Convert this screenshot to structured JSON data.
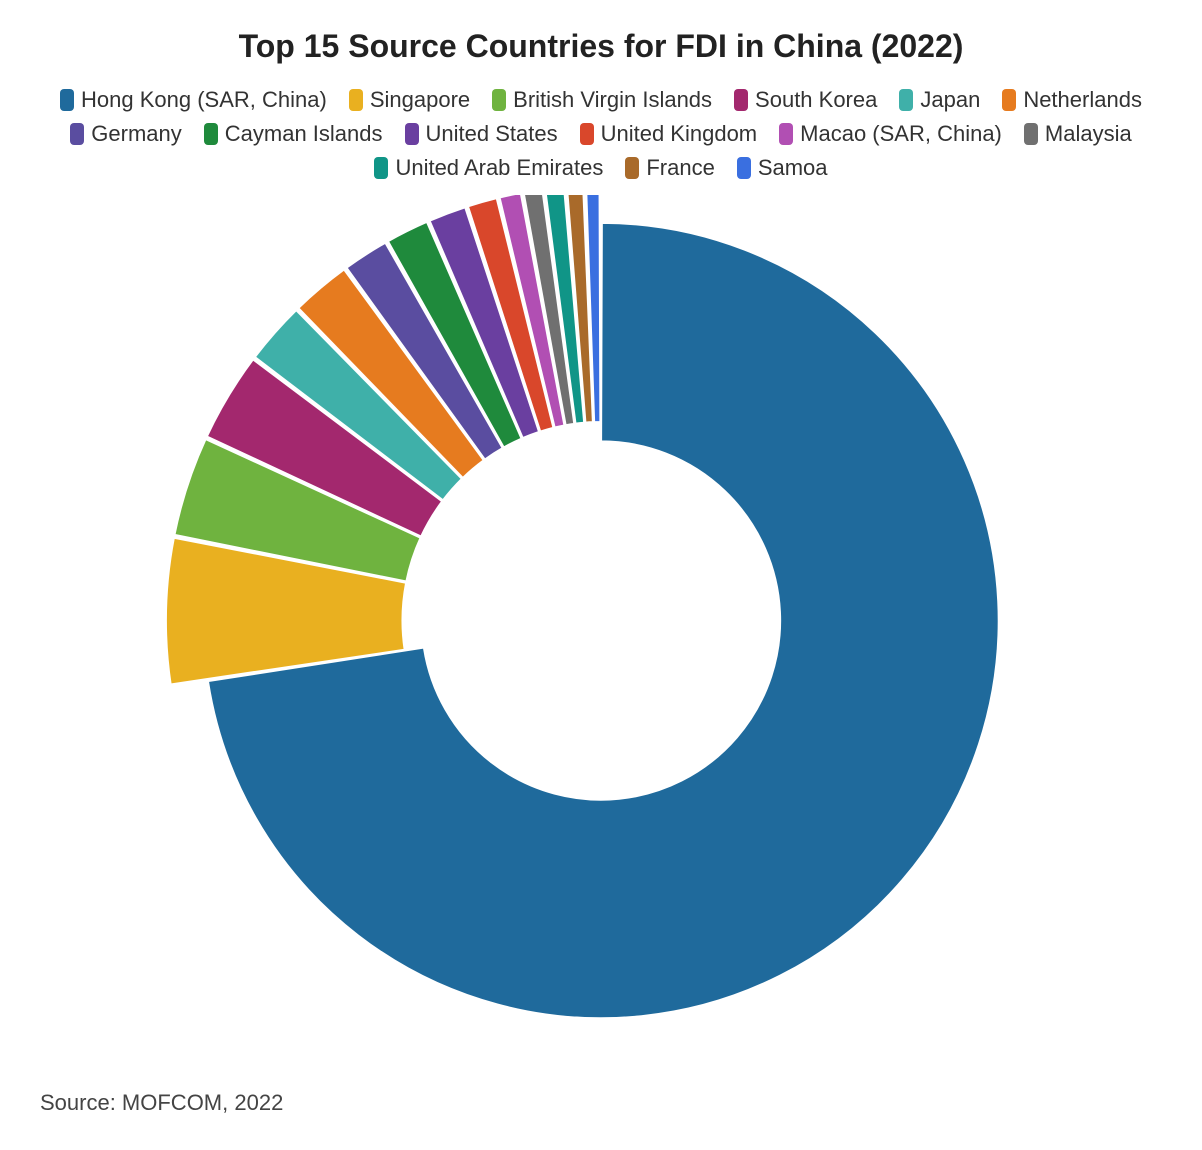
{
  "chart": {
    "type": "donut",
    "title": "Top 15 Source Countries for FDI in China (2022)",
    "title_fontsize": 32,
    "title_color": "#222222",
    "background_color": "#ffffff",
    "legend_fontsize": 22,
    "legend_text_color": "#333333",
    "swatch_width": 14,
    "swatch_height": 22,
    "swatch_border_radius": 4,
    "donut_outer_radius": 420,
    "donut_inner_radius": 190,
    "donut_exploded_inner_radius": 210,
    "donut_exploded_outer_radius": 460,
    "slice_gap_deg": 0.4,
    "explode_threshold_pct": 10,
    "slices": [
      {
        "label": "Hong Kong (SAR, China)",
        "value": 72.6,
        "color": "#1f6a9c"
      },
      {
        "label": "Singapore",
        "value": 5.5,
        "color": "#e9b020"
      },
      {
        "label": "British Virgin Islands",
        "value": 3.8,
        "color": "#6fb33f"
      },
      {
        "label": "South Korea",
        "value": 3.4,
        "color": "#a3286e"
      },
      {
        "label": "Japan",
        "value": 2.4,
        "color": "#3fb0a9"
      },
      {
        "label": "Netherlands",
        "value": 2.3,
        "color": "#e67b1f"
      },
      {
        "label": "Germany",
        "value": 1.8,
        "color": "#5a4da0"
      },
      {
        "label": "Cayman Islands",
        "value": 1.7,
        "color": "#1f8a3c"
      },
      {
        "label": "United States",
        "value": 1.5,
        "color": "#6a3fa0"
      },
      {
        "label": "United Kingdom",
        "value": 1.2,
        "color": "#d9472b"
      },
      {
        "label": "Macao (SAR, China)",
        "value": 0.9,
        "color": "#b14fb3"
      },
      {
        "label": "Malaysia",
        "value": 0.8,
        "color": "#707070"
      },
      {
        "label": "United Arab Emirates",
        "value": 0.8,
        "color": "#109587"
      },
      {
        "label": "France",
        "value": 0.7,
        "color": "#a96a2a"
      },
      {
        "label": "Samoa",
        "value": 0.6,
        "color": "#3a6fe0"
      }
    ],
    "source_text": "Source: MOFCOM, 2022",
    "source_fontsize": 22,
    "source_color": "#444444"
  }
}
